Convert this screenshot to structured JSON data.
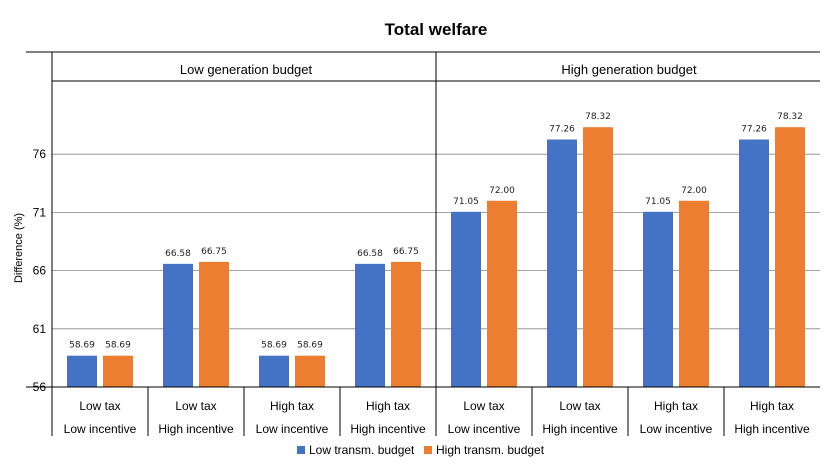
{
  "chart_data": {
    "type": "bar",
    "title": "Total welfare",
    "ylabel": "Difference (%)",
    "xlabel": "",
    "ylim": [
      56,
      81
    ],
    "yticks": [
      56,
      61,
      66,
      71,
      76
    ],
    "panels": [
      "Low generation budget",
      "High generation budget"
    ],
    "categories": [
      {
        "panel": "Low generation budget",
        "tax": "Low tax",
        "incentive": "Low incentive"
      },
      {
        "panel": "Low generation budget",
        "tax": "Low tax",
        "incentive": "High incentive"
      },
      {
        "panel": "Low generation budget",
        "tax": "High tax",
        "incentive": "Low incentive"
      },
      {
        "panel": "Low generation budget",
        "tax": "High tax",
        "incentive": "High incentive"
      },
      {
        "panel": "High generation budget",
        "tax": "Low tax",
        "incentive": "Low incentive"
      },
      {
        "panel": "High generation budget",
        "tax": "Low tax",
        "incentive": "High incentive"
      },
      {
        "panel": "High generation budget",
        "tax": "High tax",
        "incentive": "Low incentive"
      },
      {
        "panel": "High generation budget",
        "tax": "High tax",
        "incentive": "High incentive"
      }
    ],
    "series": [
      {
        "name": "Low transm. budget",
        "color": "#4472C4",
        "values": [
          58.69,
          66.58,
          58.69,
          66.58,
          71.05,
          77.26,
          71.05,
          77.26
        ],
        "labels": [
          "58.69",
          "66.58",
          "58.69",
          "66.58",
          "71.05",
          "77.26",
          "71.05",
          "77.26"
        ]
      },
      {
        "name": "High transm. budget",
        "color": "#ED7D31",
        "values": [
          58.69,
          66.75,
          58.69,
          66.75,
          72.0,
          78.32,
          72.0,
          78.32
        ],
        "labels": [
          "58.69",
          "66.75",
          "58.69",
          "66.75",
          "72.00",
          "78.32",
          "72.00",
          "78.32"
        ]
      }
    ],
    "legend": "bottom"
  }
}
